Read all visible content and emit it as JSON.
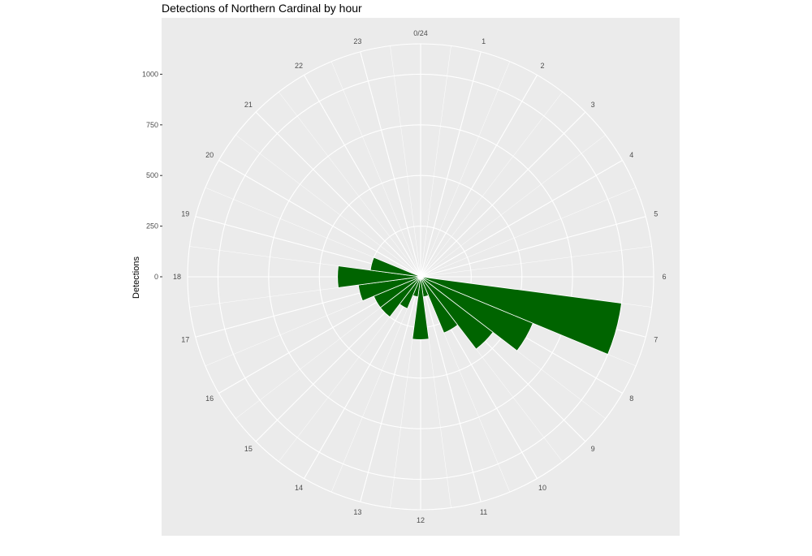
{
  "chart_data": {
    "type": "bar",
    "coord": "polar",
    "title": "Detections of Northern Cardinal by hour",
    "xlabel": "",
    "ylabel": "Detections",
    "categories": [
      "0",
      "1",
      "2",
      "3",
      "4",
      "5",
      "6",
      "7",
      "8",
      "9",
      "10",
      "11",
      "12",
      "13",
      "14",
      "15",
      "16",
      "17",
      "18",
      "19",
      "20",
      "21",
      "22",
      "23"
    ],
    "hour_labels": [
      "0/24",
      "1",
      "2",
      "3",
      "4",
      "5",
      "6",
      "7",
      "8",
      "9",
      "10",
      "11",
      "12",
      "13",
      "14",
      "15",
      "16",
      "17",
      "18",
      "19",
      "20",
      "21",
      "22",
      "23"
    ],
    "values": [
      0,
      0,
      0,
      0,
      0,
      0,
      0,
      1000,
      600,
      450,
      300,
      100,
      310,
      100,
      170,
      250,
      250,
      310,
      410,
      250,
      0,
      0,
      0,
      0
    ],
    "y_ticks": [
      0,
      250,
      500,
      750,
      1000
    ],
    "y_tick_labels": [
      "0",
      "250",
      "500",
      "750",
      "1000"
    ],
    "ylim": [
      0,
      1150
    ],
    "grid": true,
    "colors": {
      "bar": "#006400",
      "panel": "#ebebeb",
      "grid": "#ffffff"
    }
  }
}
